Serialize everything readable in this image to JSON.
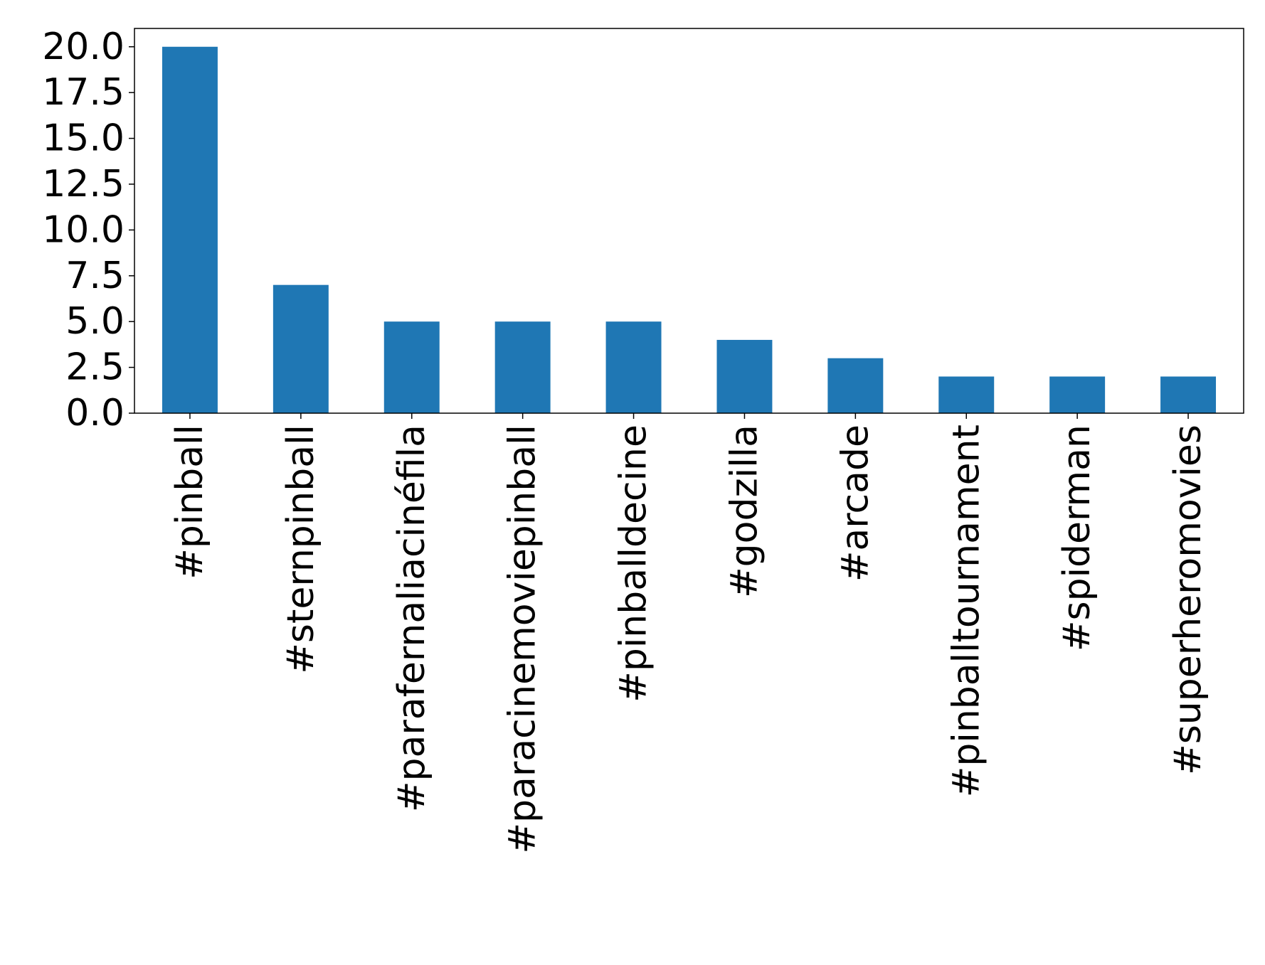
{
  "chart_data": {
    "type": "bar",
    "categories": [
      "#pinball",
      "#sternpinball",
      "#parafernaliacinéfila",
      "#paracinemoviepinball",
      "#pinballdecine",
      "#godzilla",
      "#arcade",
      "#pinballtournament",
      "#spiderman",
      "#superheromovies"
    ],
    "values": [
      20,
      7,
      5,
      5,
      5,
      4,
      3,
      2,
      2,
      2
    ],
    "color": "#1f77b4",
    "ylim": [
      0,
      21
    ],
    "yticks": [
      {
        "value": 0,
        "label": "0.0"
      },
      2.5,
      {
        "value": 5,
        "label": "5.0"
      },
      7.5,
      {
        "value": 10,
        "label": "10.0"
      },
      12.5,
      {
        "value": 15,
        "label": "15.0"
      },
      17.5,
      {
        "value": 20,
        "label": "20.0"
      }
    ]
  }
}
